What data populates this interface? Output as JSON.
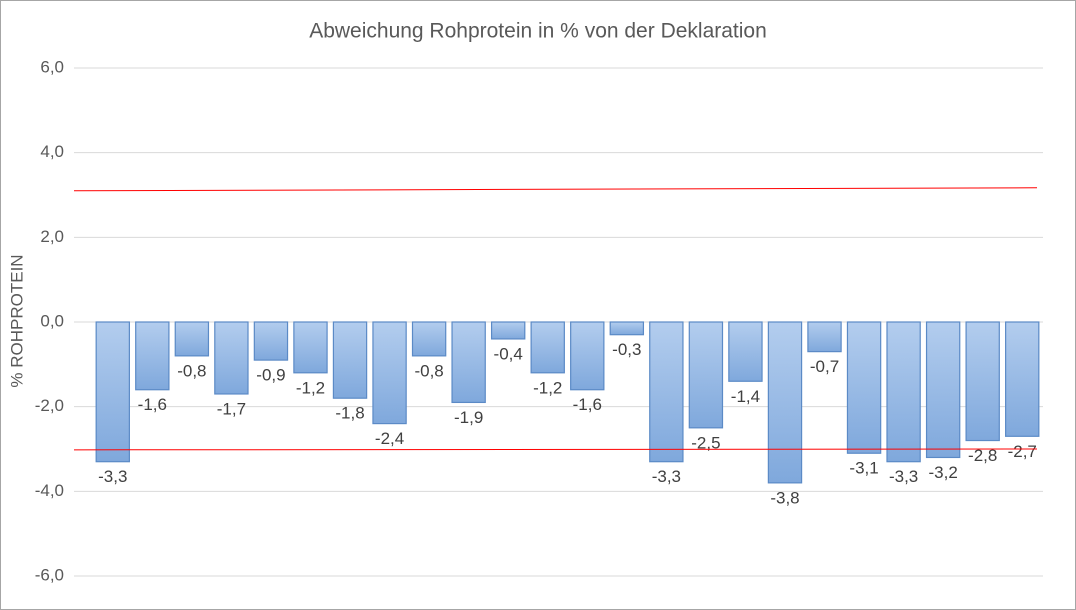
{
  "chart_data": {
    "type": "bar",
    "title": "Abweichung Rohprotein in % von der Deklaration",
    "y_label": "% ROHPROTEIN",
    "categories": [
      null,
      null,
      null,
      null,
      null,
      null,
      null,
      null,
      null,
      null,
      null,
      null,
      null,
      null,
      null,
      null,
      null,
      null,
      null,
      null,
      null,
      null,
      null,
      null
    ],
    "values": [
      -3.3,
      -1.6,
      -0.8,
      -1.7,
      -0.9,
      -1.2,
      -1.8,
      -2.4,
      -0.8,
      -1.9,
      -0.4,
      -1.2,
      -1.6,
      -0.3,
      -3.3,
      -2.5,
      -1.4,
      -3.8,
      -0.7,
      -3.1,
      -3.3,
      -3.2,
      -2.8,
      -2.7
    ],
    "value_labels": [
      "-3,3",
      "-1,6",
      "-0,8",
      "-1,7",
      "-0,9",
      "-1,2",
      "-1,8",
      "-2,4",
      "-0,8",
      "-1,9",
      "-0,4",
      "-1,2",
      "-1,6",
      "-0,3",
      "-3,3",
      "-2,5",
      "-1,4",
      "-3,8",
      "-0,7",
      "-3,1",
      "-3,3",
      "-3,2",
      "-2,8",
      "-2,7"
    ],
    "color": "#8db3e2",
    "ylim": [
      -6,
      6
    ],
    "yticks": [
      {
        "value": -6,
        "label": "-6,0"
      },
      {
        "value": -4,
        "label": "-4,0"
      },
      {
        "value": -2,
        "label": "-2,0"
      },
      {
        "value": 0,
        "label": "0,0"
      },
      {
        "value": 2,
        "label": "2,0"
      },
      {
        "value": 4,
        "label": "4,0"
      },
      {
        "value": 6,
        "label": "6,0"
      }
    ],
    "grid": true,
    "reference_lines": [
      {
        "color": "#ff0000",
        "values": [
          3.1,
          3.17
        ]
      },
      {
        "color": "#ff0000",
        "values": [
          -3.02,
          -3.0
        ]
      }
    ]
  }
}
